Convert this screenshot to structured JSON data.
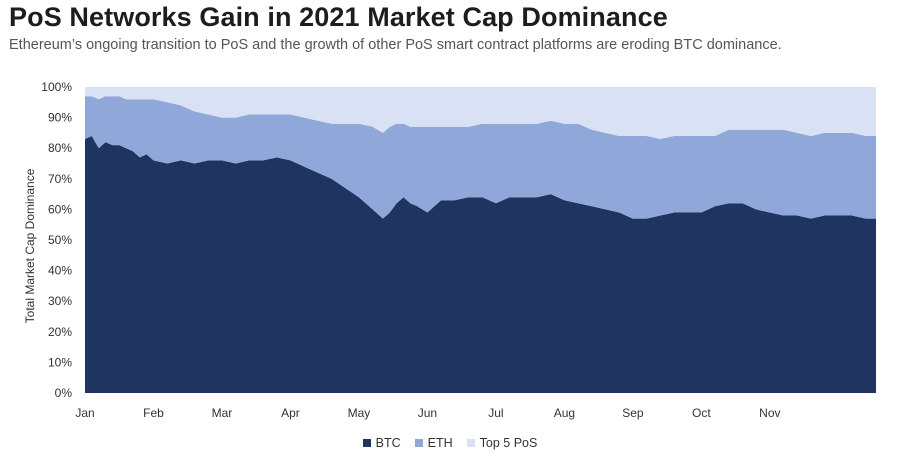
{
  "header": {
    "title": "PoS Networks Gain in 2021 Market Cap Dominance",
    "subtitle": "Ethereum’s ongoing transition to PoS and the growth of other PoS smart contract platforms are eroding BTC dominance."
  },
  "colors": {
    "btc": "#1f3461",
    "eth": "#8fa8d9",
    "top5": "#d9e2f4"
  },
  "chart_data": {
    "type": "area",
    "stacked": true,
    "title": "PoS Networks Gain in 2021 Market Cap Dominance",
    "ylabel": "Total Market Cap Dominance",
    "xlabel": "",
    "ylim": [
      0,
      100
    ],
    "yticks": [
      "0%",
      "10%",
      "20%",
      "30%",
      "40%",
      "50%",
      "60%",
      "70%",
      "80%",
      "90%",
      "100%"
    ],
    "xticks": [
      "Jan",
      "Feb",
      "Mar",
      "Apr",
      "May",
      "Jun",
      "Jul",
      "Aug",
      "Sep",
      "Oct",
      "Nov"
    ],
    "xlim": [
      0,
      11.55
    ],
    "x": [
      0,
      0.1,
      0.2,
      0.3,
      0.4,
      0.5,
      0.6,
      0.7,
      0.8,
      0.9,
      1.0,
      1.2,
      1.4,
      1.6,
      1.8,
      2.0,
      2.2,
      2.4,
      2.6,
      2.8,
      3.0,
      3.2,
      3.4,
      3.6,
      3.8,
      4.0,
      4.2,
      4.35,
      4.45,
      4.55,
      4.65,
      4.75,
      4.85,
      5.0,
      5.2,
      5.4,
      5.6,
      5.8,
      6.0,
      6.2,
      6.4,
      6.6,
      6.8,
      7.0,
      7.2,
      7.4,
      7.6,
      7.8,
      8.0,
      8.2,
      8.4,
      8.6,
      8.8,
      9.0,
      9.2,
      9.4,
      9.6,
      9.8,
      10.0,
      10.2,
      10.4,
      10.6,
      10.8,
      11.0,
      11.2,
      11.4,
      11.55
    ],
    "series": [
      {
        "name": "BTC",
        "values": [
          83,
          84,
          80,
          82,
          81,
          81,
          80,
          79,
          77,
          78,
          76,
          75,
          76,
          75,
          76,
          76,
          75,
          76,
          76,
          77,
          76,
          74,
          72,
          70,
          67,
          64,
          60,
          57,
          59,
          62,
          64,
          62,
          61,
          59,
          63,
          63,
          64,
          64,
          62,
          64,
          64,
          64,
          65,
          63,
          62,
          61,
          60,
          59,
          57,
          57,
          58,
          59,
          59,
          59,
          61,
          62,
          62,
          60,
          59,
          58,
          58,
          57,
          58,
          58,
          58,
          57,
          57
        ]
      },
      {
        "name": "ETH",
        "values": [
          14,
          13,
          16,
          15,
          16,
          16,
          16,
          17,
          19,
          18,
          20,
          20,
          18,
          17,
          15,
          14,
          15,
          15,
          15,
          14,
          15,
          16,
          17,
          18,
          21,
          24,
          27,
          28,
          28,
          26,
          24,
          25,
          26,
          28,
          24,
          24,
          23,
          24,
          26,
          24,
          24,
          24,
          24,
          25,
          26,
          25,
          25,
          25,
          27,
          27,
          25,
          25,
          25,
          25,
          23,
          24,
          24,
          26,
          27,
          28,
          27,
          27,
          27,
          27,
          27,
          27,
          27
        ]
      },
      {
        "name": "Top 5 PoS",
        "values": [
          3,
          3,
          4,
          3,
          3,
          3,
          4,
          4,
          4,
          4,
          4,
          5,
          6,
          8,
          9,
          10,
          10,
          9,
          9,
          9,
          9,
          10,
          11,
          12,
          12,
          12,
          13,
          15,
          13,
          12,
          12,
          13,
          13,
          13,
          13,
          13,
          13,
          12,
          12,
          12,
          12,
          12,
          11,
          12,
          12,
          14,
          15,
          16,
          16,
          16,
          17,
          16,
          16,
          16,
          16,
          14,
          14,
          14,
          14,
          14,
          15,
          16,
          15,
          15,
          15,
          16,
          16
        ]
      }
    ],
    "legend": {
      "position": "bottom-center",
      "entries": [
        "BTC",
        "ETH",
        "Top 5 PoS"
      ]
    }
  }
}
